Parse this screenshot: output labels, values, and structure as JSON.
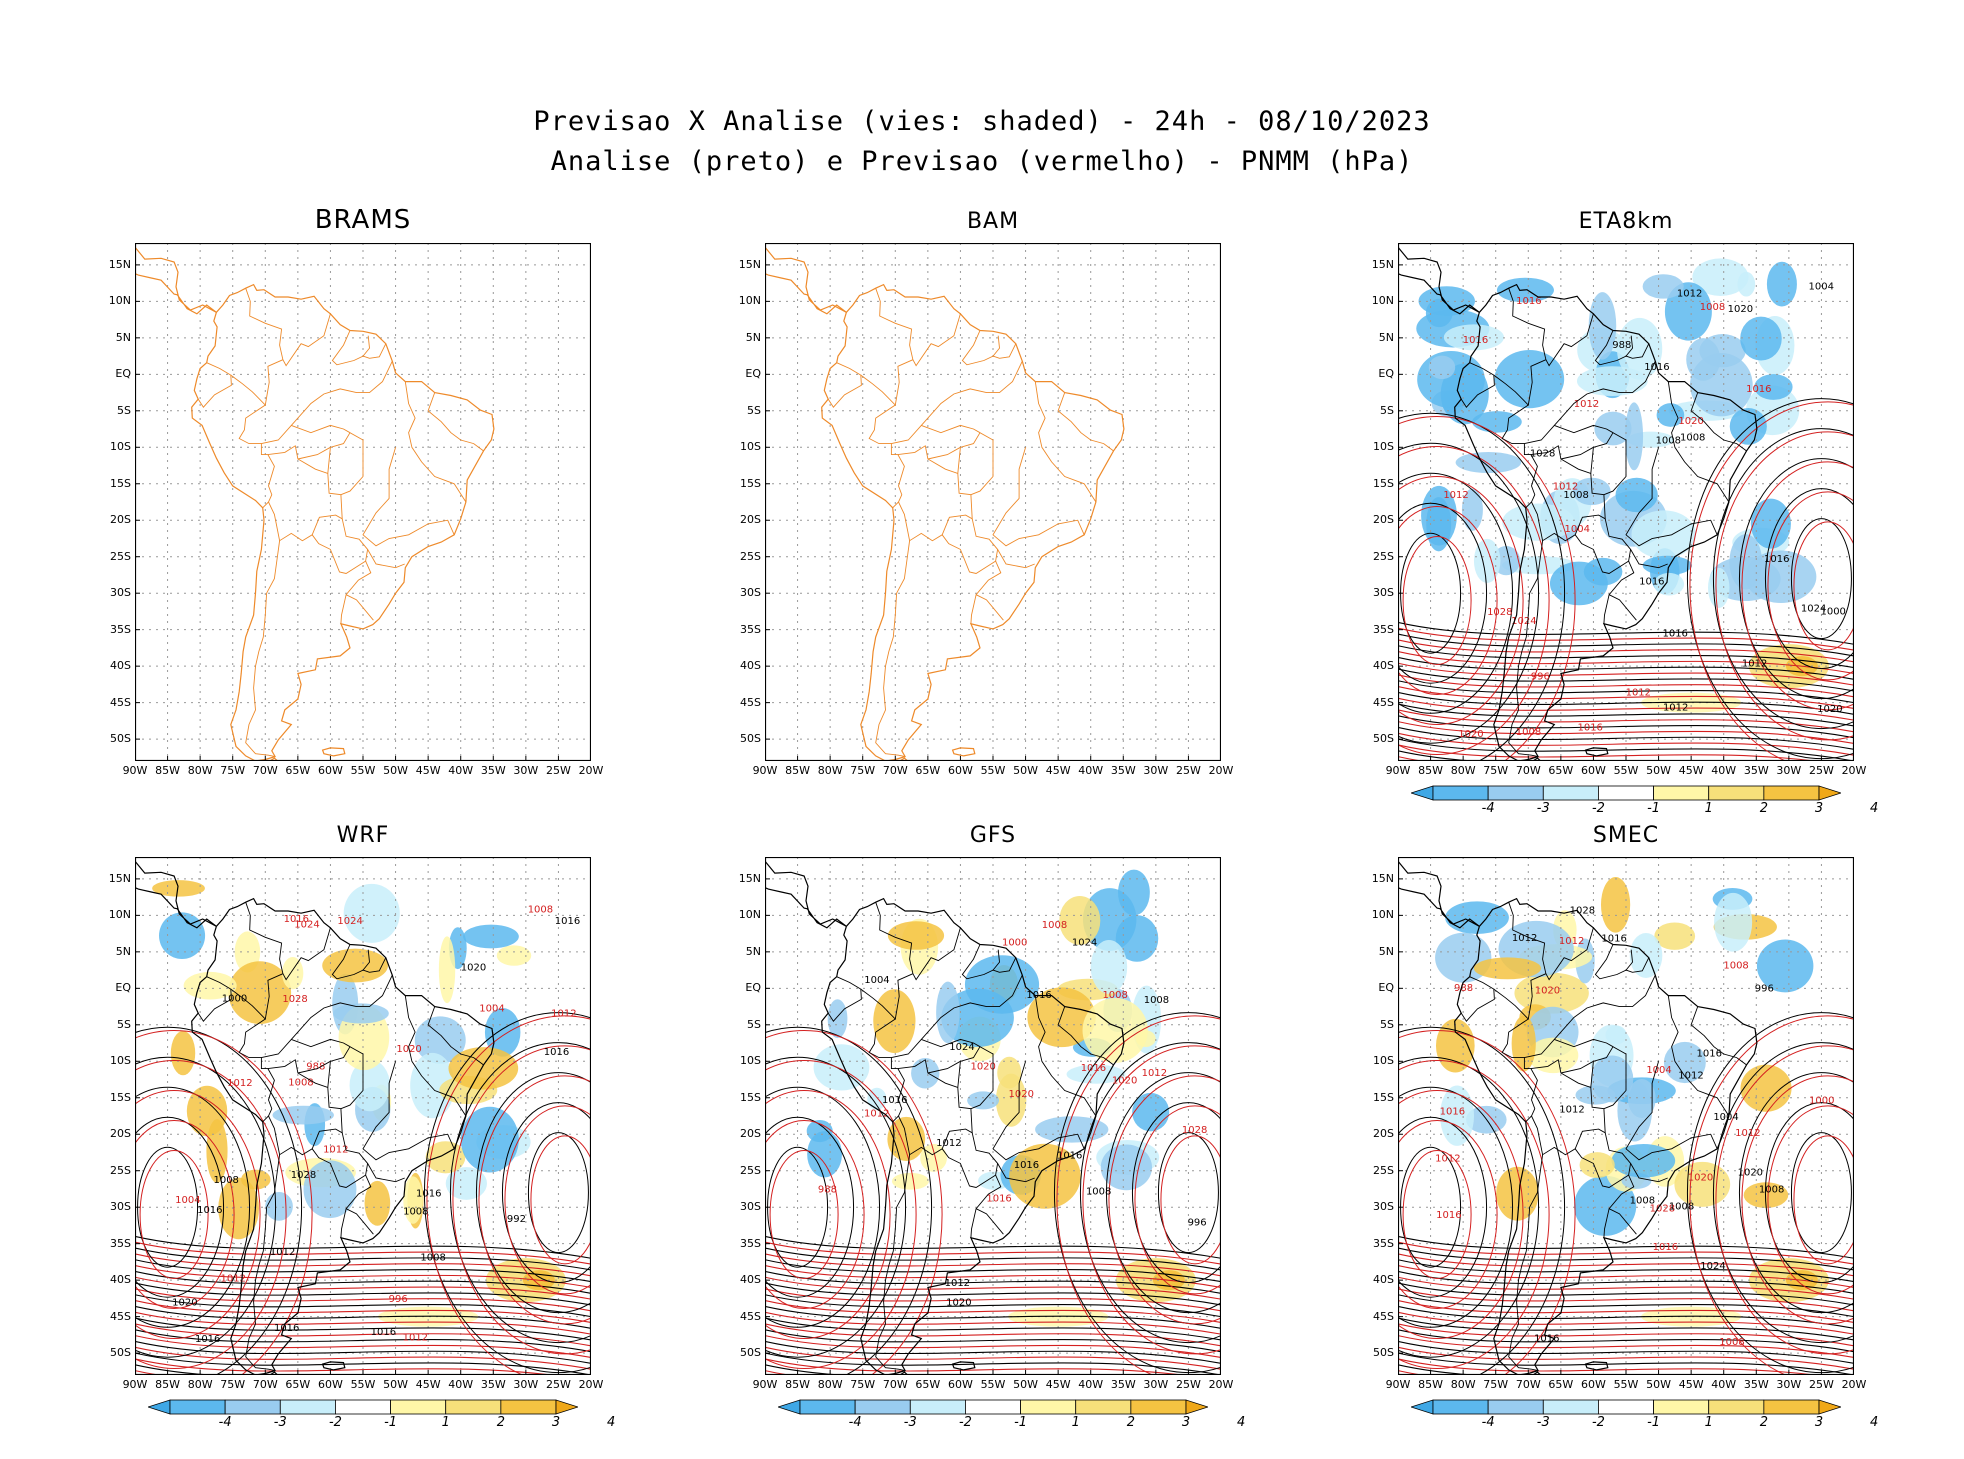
{
  "title": {
    "line1": "Previsao X Analise (vies: shaded) - 24h - 08/10/2023",
    "line2": "Analise (preto) e Previsao (vermelho) - PNMM (hPa)"
  },
  "panels": [
    {
      "name": "BRAMS",
      "mode": "outline",
      "has_colorbar": false
    },
    {
      "name": "BAM",
      "mode": "outline",
      "has_colorbar": false
    },
    {
      "name": "ETA8km",
      "mode": "field",
      "has_colorbar": true
    },
    {
      "name": "WRF",
      "mode": "field",
      "has_colorbar": true
    },
    {
      "name": "GFS",
      "mode": "field",
      "has_colorbar": true
    },
    {
      "name": "SMEC",
      "mode": "field",
      "has_colorbar": true
    }
  ],
  "lat_ticks": [
    "15N",
    "10N",
    "5N",
    "EQ",
    "5S",
    "10S",
    "15S",
    "20S",
    "25S",
    "30S",
    "35S",
    "40S",
    "45S",
    "50S"
  ],
  "lon_ticks": [
    "90W",
    "85W",
    "80W",
    "75W",
    "70W",
    "65W",
    "60W",
    "55W",
    "50W",
    "45W",
    "40W",
    "35W",
    "30W",
    "25W",
    "20W"
  ],
  "colorbar": {
    "labels": [
      "-4",
      "-3",
      "-2",
      "-1",
      "1",
      "2",
      "3",
      "4"
    ],
    "colors": [
      "#3fa8e6",
      "#5cb8ee",
      "#99ccf0",
      "#c8eefa",
      "#ffffff",
      "#fff7a8",
      "#f7e07a",
      "#f5c342",
      "#f0a818"
    ]
  },
  "colors": {
    "analysis": "#000000",
    "forecast": "#d42020",
    "coast": "#ee8a2a",
    "grid": "#999999"
  },
  "contour_labels": {
    "ETA8km": [
      "1012",
      "1012",
      "1008",
      "1008",
      "1008",
      "1012",
      "1012",
      "1016",
      "1016",
      "1012",
      "1016",
      "1020",
      "1020",
      "1024",
      "1024",
      "1028",
      "1028",
      "1016",
      "1016",
      "1020",
      "1016",
      "1016",
      "1020",
      "1012",
      "1008",
      "1004",
      "1000",
      "996",
      "988",
      "1016",
      "1012",
      "1008",
      "1004"
    ],
    "WRF": [
      "1016",
      "1012",
      "1012",
      "1008",
      "1016",
      "1012",
      "1008",
      "1012",
      "1016",
      "1020",
      "1016",
      "1008",
      "1016",
      "1024",
      "1020",
      "1024",
      "1028",
      "1028",
      "1020",
      "1016",
      "1016",
      "1012",
      "1008",
      "1004",
      "1000",
      "996",
      "992",
      "988",
      "1016",
      "1012",
      "1008",
      "1004"
    ],
    "GFS": [
      "1012",
      "1012",
      "1008",
      "1008",
      "1016",
      "1016",
      "1016",
      "1012",
      "1008",
      "1020",
      "1024",
      "1028",
      "1020",
      "1020",
      "1016",
      "1016",
      "1012",
      "1008",
      "1004",
      "1000",
      "996",
      "988",
      "1016",
      "1020",
      "1024"
    ],
    "SMEC": [
      "1012",
      "1008",
      "1008",
      "1012",
      "1012",
      "1016",
      "1016",
      "1012",
      "1008",
      "1016",
      "1020",
      "1020",
      "1024",
      "1028",
      "1028",
      "1016",
      "1016",
      "1020",
      "1012",
      "1008",
      "1004",
      "1000",
      "996",
      "988",
      "1016",
      "1012",
      "1008",
      "1004"
    ]
  }
}
